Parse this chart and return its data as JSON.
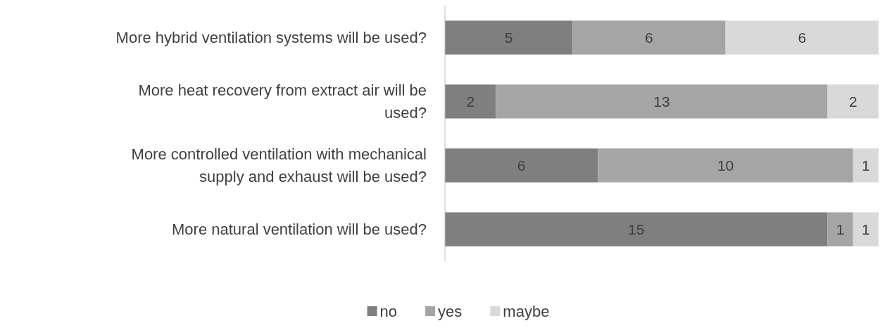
{
  "chart_data": {
    "type": "bar",
    "orientation": "horizontal",
    "stacked": true,
    "xlim": [
      0,
      17
    ],
    "data_labels": true,
    "legend": "bottom",
    "categories": [
      "More hybrid ventilation systems will be used?",
      "More heat recovery from extract air will be used?",
      "More controlled ventilation with mechanical supply and exhaust will be used?",
      "More natural ventilation will be used?"
    ],
    "series": [
      {
        "name": "no",
        "color": "#7f7f7f",
        "values": [
          5,
          2,
          6,
          15
        ]
      },
      {
        "name": "yes",
        "color": "#a5a5a5",
        "values": [
          6,
          13,
          10,
          1
        ]
      },
      {
        "name": "maybe",
        "color": "#d9d9d9",
        "values": [
          6,
          2,
          1,
          1
        ]
      }
    ]
  }
}
